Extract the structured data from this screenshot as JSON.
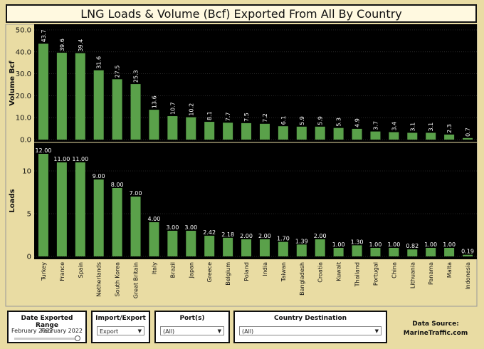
{
  "title": "LNG Loads & Volume (Bcf) Exported From All By Country",
  "chart_data": [
    {
      "type": "bar",
      "ylabel": "Volume Bcf",
      "ylim": [
        0,
        50
      ],
      "yticks": [
        "50.0",
        "40.0",
        "30.0",
        "20.0",
        "10.0",
        "0.0"
      ],
      "categories": [
        "Turkey",
        "France",
        "Spain",
        "Netherlands",
        "South Korea",
        "Great Britain",
        "Italy",
        "Brazil",
        "Japan",
        "Greece",
        "Belgium",
        "Poland",
        "India",
        "Taiwan",
        "Bangladesh",
        "Croatia",
        "Kuwait",
        "Thailand",
        "Portugal",
        "China",
        "Lithuania",
        "Panama",
        "Malta",
        "Indonesia"
      ],
      "values": [
        43.7,
        39.6,
        39.4,
        31.6,
        27.5,
        25.3,
        13.6,
        10.7,
        10.2,
        8.1,
        7.7,
        7.5,
        7.2,
        6.1,
        5.9,
        5.9,
        5.3,
        4.9,
        3.7,
        3.4,
        3.1,
        3.1,
        2.3,
        0.7
      ],
      "labels": [
        "43.7",
        "39.6",
        "39.4",
        "31.6",
        "27.5",
        "25.3",
        "13.6",
        "10.7",
        "10.2",
        "8.1",
        "7.7",
        "7.5",
        "7.2",
        "6.1",
        "5.9",
        "5.9",
        "5.3",
        "4.9",
        "3.7",
        "3.4",
        "3.1",
        "3.1",
        "2.3",
        "0.7"
      ],
      "bar_color": "#5aa14a"
    },
    {
      "type": "bar",
      "ylabel": "Loads",
      "ylim": [
        0,
        13
      ],
      "yticks": [
        "10",
        "5",
        "0"
      ],
      "categories": [
        "Turkey",
        "France",
        "Spain",
        "Netherlands",
        "South Korea",
        "Great Britain",
        "Italy",
        "Brazil",
        "Japan",
        "Greece",
        "Belgium",
        "Poland",
        "India",
        "Taiwan",
        "Bangladesh",
        "Croatia",
        "Kuwait",
        "Thailand",
        "Portugal",
        "China",
        "Lithuania",
        "Panama",
        "Malta",
        "Indonesia"
      ],
      "values": [
        12,
        11,
        11,
        9,
        8,
        7,
        4,
        3,
        3,
        2.42,
        2.18,
        2,
        2,
        1.7,
        1.39,
        2,
        1,
        1.3,
        1,
        1,
        0.82,
        1,
        1,
        0.19
      ],
      "labels": [
        "12.00",
        "11.00",
        "11.00",
        "9.00",
        "8.00",
        "7.00",
        "4.00",
        "3.00",
        "3.00",
        "2.42",
        "2.18",
        "2.00",
        "2.00",
        "1.70",
        "1.39",
        "2.00",
        "1.00",
        "1.30",
        "1.00",
        "1.00",
        "0.82",
        "1.00",
        "1.00",
        "0.19"
      ],
      "bar_color": "#5aa14a"
    }
  ],
  "filters": {
    "date": {
      "header": "Date Exported Range",
      "from": "February 2022",
      "to": "February 2022"
    },
    "import_export": {
      "header": "Import/Export",
      "value": "Export"
    },
    "ports": {
      "header": "Port(s)",
      "value": "(All)"
    },
    "country": {
      "header": "Country Destination",
      "value": "(All)"
    }
  },
  "source": {
    "line1": "Data Source:",
    "line2": "MarineTraffic.com"
  },
  "colors": {
    "background": "#e9dca3",
    "plot": "#000000",
    "bar": "#5aa14a"
  }
}
